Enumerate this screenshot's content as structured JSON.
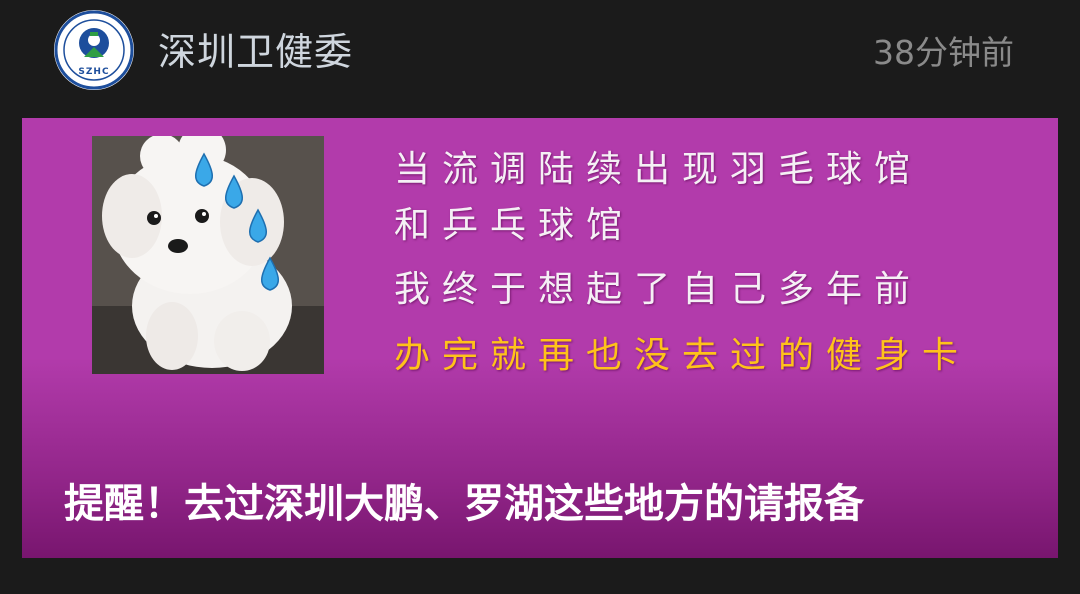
{
  "header": {
    "account_name": "深圳卫健委",
    "timestamp": "38分钟前",
    "avatar_icon": "health-commission-logo-icon",
    "avatar_text": "SZHC"
  },
  "card": {
    "image_lines": [
      "当流调陆续出现羽毛球馆",
      "和乒乓球馆",
      "我终于想起了自己多年前",
      "办完就再也没去过的健身卡"
    ],
    "headline": "提醒！去过深圳大鹏、罗湖这些地方的请报备",
    "colors": {
      "card_bg": "#b23bab",
      "highlight": "#ffc21a",
      "text": "#f5f0f5"
    },
    "photo_icon": "puppy-sweat-drops-icon"
  }
}
